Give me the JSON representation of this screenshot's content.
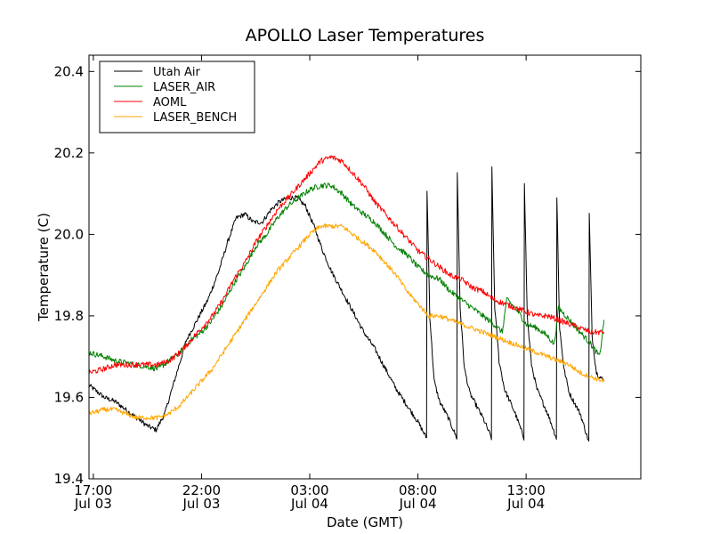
{
  "chart_data": {
    "type": "line",
    "title": "APOLLO Laser Temperatures",
    "xlabel": "Date (GMT)",
    "ylabel": "Temperature (C)",
    "x_unit": "hours since Jul 03 00:00 GMT",
    "xlim": [
      16.8,
      42.3
    ],
    "ylim": [
      19.4,
      20.44
    ],
    "x_ticks": [
      {
        "value": 17,
        "line1": "17:00",
        "line2": "Jul 03"
      },
      {
        "value": 22,
        "line1": "22:00",
        "line2": "Jul 03"
      },
      {
        "value": 27,
        "line1": "03:00",
        "line2": "Jul 04"
      },
      {
        "value": 32,
        "line1": "08:00",
        "line2": "Jul 04"
      },
      {
        "value": 37,
        "line1": "13:00",
        "line2": "Jul 04"
      }
    ],
    "y_ticks": [
      {
        "value": 19.4,
        "label": "19.4"
      },
      {
        "value": 19.6,
        "label": "19.6"
      },
      {
        "value": 19.8,
        "label": "19.8"
      },
      {
        "value": 20.0,
        "label": "20.0"
      },
      {
        "value": 20.2,
        "label": "20.2"
      },
      {
        "value": 20.4,
        "label": "20.4"
      }
    ],
    "legend_position": "top-left",
    "series": [
      {
        "name": "Utah Air",
        "color": "#000000",
        "noise": 0.006,
        "points": [
          [
            16.8,
            19.63
          ],
          [
            17.5,
            19.6
          ],
          [
            18.0,
            19.59
          ],
          [
            18.5,
            19.57
          ],
          [
            19.0,
            19.55
          ],
          [
            19.5,
            19.53
          ],
          [
            19.9,
            19.52
          ],
          [
            20.3,
            19.56
          ],
          [
            20.8,
            19.65
          ],
          [
            21.3,
            19.74
          ],
          [
            21.8,
            19.79
          ],
          [
            22.3,
            19.84
          ],
          [
            22.8,
            19.91
          ],
          [
            23.2,
            19.98
          ],
          [
            23.6,
            20.04
          ],
          [
            24.0,
            20.05
          ],
          [
            24.4,
            20.03
          ],
          [
            24.8,
            20.03
          ],
          [
            25.2,
            20.06
          ],
          [
            25.6,
            20.08
          ],
          [
            26.0,
            20.09
          ],
          [
            26.4,
            20.09
          ],
          [
            26.8,
            20.07
          ],
          [
            27.2,
            20.02
          ],
          [
            27.6,
            19.96
          ],
          [
            28.0,
            19.91
          ],
          [
            28.5,
            19.86
          ],
          [
            29.0,
            19.81
          ],
          [
            29.5,
            19.76
          ],
          [
            30.0,
            19.72
          ],
          [
            30.5,
            19.67
          ],
          [
            31.0,
            19.62
          ],
          [
            31.5,
            19.58
          ],
          [
            32.0,
            19.54
          ],
          [
            32.4,
            19.5
          ],
          [
            32.42,
            20.11
          ],
          [
            32.55,
            19.8
          ],
          [
            32.75,
            19.64
          ],
          [
            33.0,
            19.59
          ],
          [
            33.4,
            19.55
          ],
          [
            33.8,
            19.5
          ],
          [
            33.82,
            20.15
          ],
          [
            33.95,
            19.82
          ],
          [
            34.15,
            19.67
          ],
          [
            34.4,
            19.61
          ],
          [
            35.0,
            19.55
          ],
          [
            35.4,
            19.5
          ],
          [
            35.42,
            20.16
          ],
          [
            35.55,
            19.82
          ],
          [
            35.75,
            19.69
          ],
          [
            36.0,
            19.62
          ],
          [
            36.5,
            19.56
          ],
          [
            36.9,
            19.5
          ],
          [
            36.92,
            20.13
          ],
          [
            37.05,
            19.8
          ],
          [
            37.25,
            19.68
          ],
          [
            37.5,
            19.62
          ],
          [
            38.0,
            19.56
          ],
          [
            38.4,
            19.5
          ],
          [
            38.42,
            20.09
          ],
          [
            38.55,
            19.77
          ],
          [
            38.75,
            19.67
          ],
          [
            39.0,
            19.61
          ],
          [
            39.5,
            19.56
          ],
          [
            39.9,
            19.49
          ],
          [
            39.92,
            20.05
          ],
          [
            40.05,
            19.75
          ],
          [
            40.25,
            19.66
          ],
          [
            40.6,
            19.64
          ]
        ]
      },
      {
        "name": "LASER_AIR",
        "color": "#008000",
        "noise": 0.007,
        "points": [
          [
            16.8,
            19.71
          ],
          [
            17.5,
            19.7
          ],
          [
            18.0,
            19.69
          ],
          [
            19.0,
            19.68
          ],
          [
            20.0,
            19.67
          ],
          [
            20.5,
            19.69
          ],
          [
            21.0,
            19.71
          ],
          [
            21.5,
            19.74
          ],
          [
            22.0,
            19.76
          ],
          [
            22.5,
            19.79
          ],
          [
            23.0,
            19.83
          ],
          [
            23.5,
            19.88
          ],
          [
            24.0,
            19.92
          ],
          [
            24.5,
            19.97
          ],
          [
            25.0,
            20.0
          ],
          [
            25.5,
            20.04
          ],
          [
            26.0,
            20.07
          ],
          [
            26.5,
            20.09
          ],
          [
            27.0,
            20.11
          ],
          [
            27.5,
            20.12
          ],
          [
            28.0,
            20.12
          ],
          [
            28.5,
            20.1
          ],
          [
            29.0,
            20.07
          ],
          [
            29.5,
            20.05
          ],
          [
            30.0,
            20.03
          ],
          [
            30.5,
            20.0
          ],
          [
            31.0,
            19.97
          ],
          [
            31.5,
            19.95
          ],
          [
            32.0,
            19.92
          ],
          [
            32.5,
            19.9
          ],
          [
            33.0,
            19.89
          ],
          [
            33.5,
            19.86
          ],
          [
            34.0,
            19.84
          ],
          [
            34.5,
            19.82
          ],
          [
            35.0,
            19.8
          ],
          [
            35.5,
            19.78
          ],
          [
            35.9,
            19.76
          ],
          [
            36.1,
            19.84
          ],
          [
            36.5,
            19.82
          ],
          [
            37.0,
            19.78
          ],
          [
            37.5,
            19.77
          ],
          [
            38.0,
            19.75
          ],
          [
            38.3,
            19.73
          ],
          [
            38.5,
            19.82
          ],
          [
            39.0,
            19.79
          ],
          [
            39.5,
            19.76
          ],
          [
            40.0,
            19.73
          ],
          [
            40.4,
            19.7
          ],
          [
            40.6,
            19.79
          ]
        ]
      },
      {
        "name": "AOML",
        "color": "#ff0000",
        "noise": 0.007,
        "points": [
          [
            16.8,
            19.66
          ],
          [
            17.5,
            19.67
          ],
          [
            18.0,
            19.68
          ],
          [
            19.0,
            19.68
          ],
          [
            20.0,
            19.68
          ],
          [
            20.5,
            19.69
          ],
          [
            21.0,
            19.71
          ],
          [
            21.5,
            19.74
          ],
          [
            22.0,
            19.77
          ],
          [
            22.5,
            19.8
          ],
          [
            23.0,
            19.84
          ],
          [
            23.5,
            19.89
          ],
          [
            24.0,
            19.93
          ],
          [
            24.5,
            19.98
          ],
          [
            25.0,
            20.02
          ],
          [
            25.5,
            20.06
          ],
          [
            26.0,
            20.09
          ],
          [
            26.5,
            20.12
          ],
          [
            27.0,
            20.15
          ],
          [
            27.5,
            20.18
          ],
          [
            28.0,
            20.19
          ],
          [
            28.5,
            20.18
          ],
          [
            29.0,
            20.15
          ],
          [
            29.5,
            20.12
          ],
          [
            30.0,
            20.08
          ],
          [
            30.5,
            20.05
          ],
          [
            31.0,
            20.02
          ],
          [
            31.5,
            19.99
          ],
          [
            32.0,
            19.96
          ],
          [
            32.5,
            19.94
          ],
          [
            33.0,
            19.92
          ],
          [
            33.5,
            19.9
          ],
          [
            34.0,
            19.89
          ],
          [
            34.5,
            19.87
          ],
          [
            35.0,
            19.86
          ],
          [
            35.5,
            19.84
          ],
          [
            36.0,
            19.83
          ],
          [
            36.5,
            19.82
          ],
          [
            37.0,
            19.81
          ],
          [
            37.5,
            19.8
          ],
          [
            38.0,
            19.8
          ],
          [
            38.5,
            19.79
          ],
          [
            39.0,
            19.78
          ],
          [
            39.5,
            19.77
          ],
          [
            40.0,
            19.76
          ],
          [
            40.6,
            19.76
          ]
        ]
      },
      {
        "name": "LASER_BENCH",
        "color": "#ffa500",
        "noise": 0.006,
        "points": [
          [
            16.8,
            19.56
          ],
          [
            17.5,
            19.57
          ],
          [
            18.0,
            19.57
          ],
          [
            18.5,
            19.56
          ],
          [
            19.0,
            19.55
          ],
          [
            19.5,
            19.55
          ],
          [
            20.0,
            19.55
          ],
          [
            20.5,
            19.56
          ],
          [
            21.0,
            19.58
          ],
          [
            21.5,
            19.61
          ],
          [
            22.0,
            19.64
          ],
          [
            22.5,
            19.67
          ],
          [
            23.0,
            19.71
          ],
          [
            23.5,
            19.75
          ],
          [
            24.0,
            19.79
          ],
          [
            24.5,
            19.83
          ],
          [
            25.0,
            19.87
          ],
          [
            25.5,
            19.91
          ],
          [
            26.0,
            19.94
          ],
          [
            26.5,
            19.97
          ],
          [
            27.0,
            20.0
          ],
          [
            27.5,
            20.02
          ],
          [
            28.0,
            20.02
          ],
          [
            28.5,
            20.02
          ],
          [
            29.0,
            20.0
          ],
          [
            29.5,
            19.98
          ],
          [
            30.0,
            19.96
          ],
          [
            30.5,
            19.93
          ],
          [
            31.0,
            19.9
          ],
          [
            31.5,
            19.86
          ],
          [
            32.0,
            19.83
          ],
          [
            32.5,
            19.8
          ],
          [
            33.0,
            19.8
          ],
          [
            33.5,
            19.79
          ],
          [
            34.0,
            19.78
          ],
          [
            34.5,
            19.77
          ],
          [
            35.0,
            19.76
          ],
          [
            35.5,
            19.75
          ],
          [
            36.0,
            19.74
          ],
          [
            36.5,
            19.73
          ],
          [
            37.0,
            19.72
          ],
          [
            37.5,
            19.71
          ],
          [
            38.0,
            19.7
          ],
          [
            38.5,
            19.69
          ],
          [
            39.0,
            19.68
          ],
          [
            39.5,
            19.66
          ],
          [
            40.0,
            19.65
          ],
          [
            40.6,
            19.64
          ]
        ]
      }
    ]
  }
}
